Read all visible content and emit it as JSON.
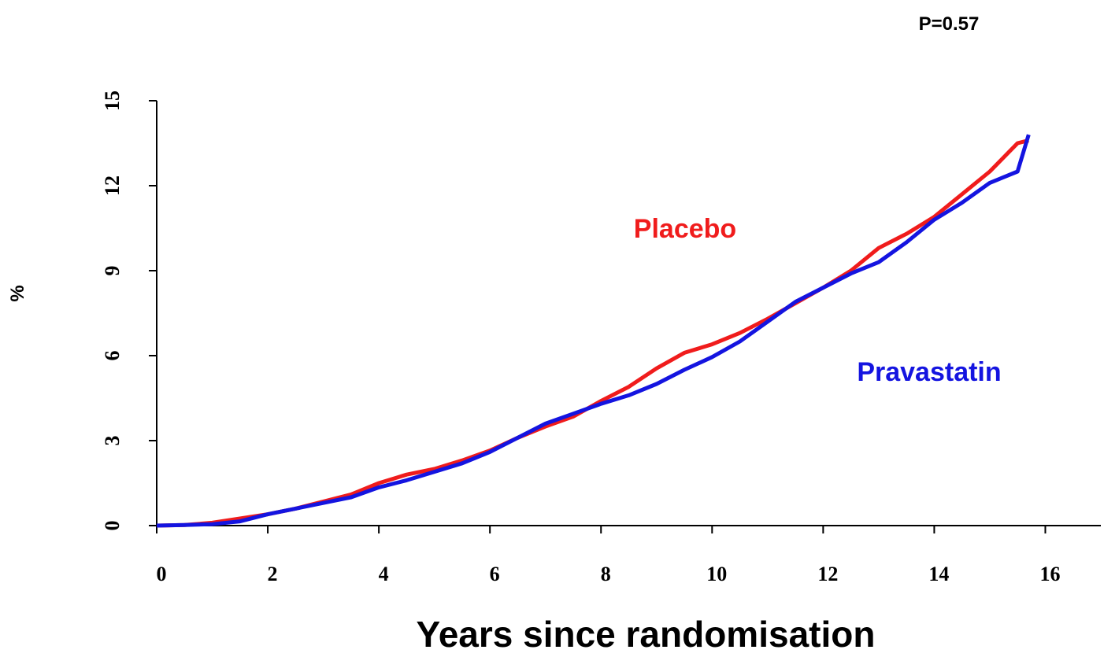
{
  "chart_data": {
    "type": "line",
    "annotations": [
      "P=0.57"
    ],
    "xlabel": "Years since randomisation",
    "ylabel": "%",
    "x": [
      0,
      0.5,
      1,
      1.5,
      2,
      2.5,
      3,
      3.5,
      4,
      4.5,
      5,
      5.5,
      6,
      6.5,
      7,
      7.5,
      8,
      8.5,
      9,
      9.5,
      10,
      10.5,
      11,
      11.5,
      12,
      12.5,
      13,
      13.5,
      14,
      14.5,
      15,
      15.5,
      15.7
    ],
    "series": [
      {
        "name": "Placebo",
        "color": "#f01c1c",
        "values": [
          0,
          0.02,
          0.1,
          0.25,
          0.4,
          0.6,
          0.85,
          1.1,
          1.5,
          1.8,
          2.0,
          2.3,
          2.65,
          3.1,
          3.5,
          3.85,
          4.4,
          4.9,
          5.55,
          6.1,
          6.4,
          6.8,
          7.3,
          7.85,
          8.4,
          9.0,
          9.8,
          10.3,
          10.9,
          11.7,
          12.5,
          13.5,
          13.6
        ]
      },
      {
        "name": "Pravastatin",
        "color": "#1414e0",
        "values": [
          0,
          0.02,
          0.05,
          0.15,
          0.4,
          0.6,
          0.8,
          1.0,
          1.35,
          1.6,
          1.9,
          2.2,
          2.6,
          3.1,
          3.6,
          3.95,
          4.3,
          4.6,
          5.0,
          5.5,
          5.95,
          6.5,
          7.2,
          7.9,
          8.4,
          8.9,
          9.3,
          10.0,
          10.8,
          11.4,
          12.1,
          12.5,
          13.8
        ]
      }
    ],
    "xlim": [
      0,
      17
    ],
    "xticks": [
      0,
      2,
      4,
      6,
      8,
      10,
      12,
      14,
      16
    ],
    "ylim": [
      0,
      15
    ],
    "yticks": [
      0,
      3,
      6,
      9,
      12,
      15
    ],
    "grid": false
  }
}
